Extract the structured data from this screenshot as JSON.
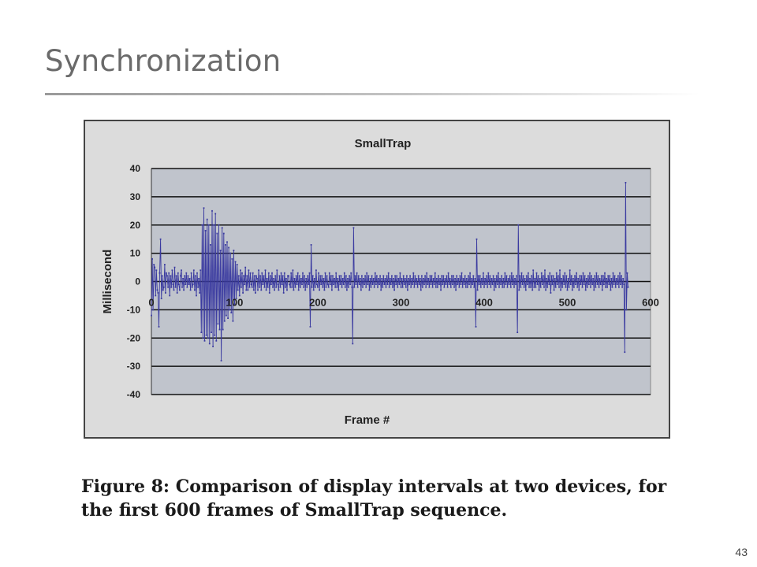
{
  "slide": {
    "title": "Synchronization",
    "page_number": "43"
  },
  "caption": "Figure 8: Comparison of display intervals at two devices, for the first 600 frames of SmallTrap sequence.",
  "chart_data": {
    "type": "line",
    "title": "SmallTrap",
    "xlabel": "Frame #",
    "ylabel": "Millisecond",
    "xlim": [
      0,
      600
    ],
    "ylim": [
      -40,
      40
    ],
    "x_ticks": [
      0,
      100,
      200,
      300,
      400,
      500,
      600
    ],
    "y_ticks": [
      40,
      30,
      20,
      10,
      0,
      -10,
      -20,
      -30,
      -40
    ],
    "grid": "horizontal",
    "colors": {
      "series": "#3a3aa0",
      "plot_background": "#c0c4cc",
      "frame_background": "#dcdcdc"
    },
    "series": [
      {
        "values_by_frame_start": 0,
        "values": [
          -12,
          8,
          -10,
          6,
          5,
          -5,
          4,
          -3,
          -4,
          -16,
          3,
          15,
          -6,
          2,
          -3,
          -2,
          6,
          -4,
          3,
          2,
          -2,
          3,
          -5,
          2,
          -2,
          4,
          -1,
          -3,
          5,
          -2,
          2,
          -4,
          3,
          -1,
          -3,
          2,
          4,
          -2,
          1,
          -3,
          2,
          -1,
          3,
          -2,
          2,
          -1,
          1,
          -3,
          3,
          -2,
          -1,
          4,
          -3,
          2,
          -5,
          3,
          -2,
          1,
          -4,
          4,
          -18,
          20,
          -20,
          26,
          -21,
          18,
          -19,
          22,
          -20,
          20,
          -22,
          13,
          -18,
          25,
          -23,
          20,
          -19,
          24,
          -21,
          17,
          -15,
          20,
          -17,
          11,
          -28,
          19,
          -17,
          17,
          -14,
          13,
          -12,
          14,
          -13,
          12,
          -10,
          10,
          -11,
          8,
          -14,
          11,
          -8,
          7,
          -6,
          6,
          -3,
          2,
          -5,
          4,
          -2,
          3,
          -4,
          2,
          -1,
          5,
          -3,
          2,
          -3,
          4,
          -2,
          3,
          -1,
          -2,
          3,
          -3,
          2,
          -4,
          2,
          1,
          -3,
          4,
          -2,
          2,
          -3,
          3,
          -1,
          2,
          -2,
          4,
          -3,
          1,
          -2,
          3,
          -4,
          2,
          -1,
          3,
          -2,
          1,
          -3,
          2,
          -2,
          4,
          -1,
          -3,
          2,
          -2,
          3,
          -1,
          2,
          -4,
          3,
          -2,
          1,
          -3,
          2,
          2,
          -1,
          -2,
          3,
          -2,
          4,
          -3,
          1,
          -2,
          2,
          -1,
          3,
          -3,
          2,
          -2,
          1,
          -1,
          3,
          -2,
          2,
          -3,
          1,
          -2,
          2,
          -1,
          3,
          -16,
          13,
          -2,
          2,
          -3,
          1,
          -2,
          4,
          -1,
          -2,
          3,
          -3,
          2,
          -1,
          2,
          -2,
          1,
          -3,
          3,
          -2,
          2,
          -1,
          -2,
          3,
          -1,
          2,
          -3,
          2,
          -1,
          1,
          -2,
          3,
          -2,
          1,
          -3,
          2,
          -1,
          2,
          -2,
          1,
          -1,
          3,
          -2,
          2,
          -3,
          1,
          -2,
          2,
          -1,
          3,
          -2,
          -22,
          19,
          -2,
          2,
          -1,
          3,
          -2,
          2,
          -1,
          1,
          -3,
          2,
          -2,
          1,
          -1,
          2,
          -2,
          3,
          -1,
          2,
          -3,
          1,
          -2,
          2,
          -1,
          1,
          -2,
          3,
          -1,
          2,
          -2,
          1,
          -1,
          2,
          -3,
          1,
          -2,
          2,
          -1,
          1,
          -2,
          2,
          -1,
          3,
          -2,
          1,
          -1,
          2,
          -2,
          1,
          -3,
          2,
          -1,
          2,
          -2,
          1,
          -1,
          3,
          -2,
          1,
          -2,
          2,
          -1,
          1,
          -2,
          2,
          -3,
          1,
          -1,
          2,
          -2,
          1,
          -1,
          3,
          -2,
          2,
          -1,
          1,
          -2,
          2,
          -1,
          1,
          -3,
          2,
          -2,
          1,
          -1,
          2,
          -2,
          3,
          -1,
          1,
          -2,
          2,
          -1,
          2,
          -2,
          1,
          -1,
          3,
          -2,
          1,
          -2,
          2,
          -1,
          1,
          -3,
          2,
          -1,
          2,
          -2,
          1,
          -1,
          2,
          -2,
          3,
          -1,
          1,
          -2,
          2,
          -1,
          2,
          -2,
          1,
          -3,
          2,
          -1,
          1,
          -2,
          2,
          -1,
          3,
          -2,
          1,
          -1,
          2,
          -2,
          1,
          -2,
          2,
          -1,
          3,
          -2,
          1,
          -1,
          2,
          -2,
          1,
          -16,
          15,
          -3,
          2,
          -1,
          2,
          -2,
          1,
          -1,
          3,
          -2,
          1,
          -1,
          2,
          -2,
          3,
          -1,
          2,
          -2,
          1,
          -1,
          2,
          -3,
          1,
          -2,
          2,
          -1,
          3,
          -2,
          1,
          -1,
          2,
          -2,
          1,
          -2,
          3,
          -1,
          2,
          -2,
          1,
          -1,
          2,
          -2,
          3,
          -1,
          2,
          -2,
          1,
          -1,
          2,
          -18,
          20,
          -3,
          2,
          -2,
          3,
          -1,
          2,
          -2,
          1,
          -3,
          2,
          -1,
          3,
          -2,
          1,
          -2,
          2,
          -3,
          4,
          -2,
          1,
          -2,
          3,
          -1,
          2,
          -3,
          1,
          -2,
          3,
          -1,
          2,
          -2,
          4,
          -3,
          1,
          -2,
          2,
          -1,
          3,
          -4,
          2,
          -1,
          2,
          -3,
          1,
          -2,
          3,
          -1,
          2,
          -2,
          4,
          -3,
          1,
          -2,
          2,
          -1,
          3,
          -2,
          2,
          -3,
          1,
          -2,
          4,
          -1,
          2,
          -3,
          1,
          -2,
          2,
          -1,
          3,
          -2,
          1,
          -3,
          2,
          -1,
          2,
          -2,
          3,
          -1,
          2,
          -3,
          1,
          -2,
          2,
          -1,
          3,
          -2,
          2,
          -1,
          1,
          -3,
          2,
          -2,
          3,
          -1,
          2,
          -2,
          1,
          -1,
          2,
          -3,
          2,
          -1,
          3,
          -2,
          1,
          -2,
          2,
          -1,
          2,
          -3,
          1,
          -2,
          3,
          -1,
          2,
          -2,
          1,
          -1,
          2,
          -2,
          3,
          -1,
          2,
          -2,
          1,
          -1,
          -25,
          35,
          -10,
          3,
          -2
        ]
      }
    ]
  }
}
